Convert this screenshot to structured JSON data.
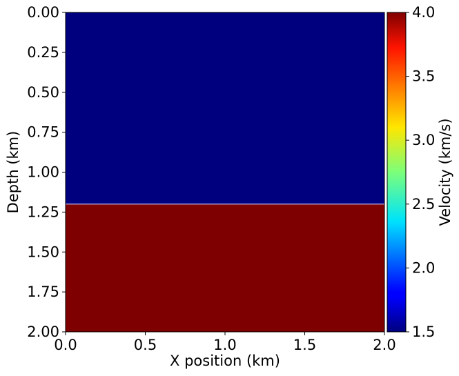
{
  "chart_data": {
    "type": "heatmap",
    "title": "",
    "xlabel": "X position (km)",
    "ylabel": "Depth (km)",
    "xlim": [
      0.0,
      2.0
    ],
    "ylim": [
      2.0,
      0.0
    ],
    "y_inverted": true,
    "x_ticks": [
      "0.0",
      "0.5",
      "1.0",
      "1.5",
      "2.0"
    ],
    "y_ticks": [
      "0.00",
      "0.25",
      "0.50",
      "0.75",
      "1.00",
      "1.25",
      "1.50",
      "1.75",
      "2.00"
    ],
    "layers": [
      {
        "depth_top": 0.0,
        "depth_bottom": 1.2,
        "velocity": 1.5,
        "color": "#00007f"
      },
      {
        "depth_top": 1.2,
        "depth_bottom": 2.0,
        "velocity": 4.0,
        "color": "#7f0000"
      }
    ],
    "colormap": "jet",
    "colorbar": {
      "label": "Velocity (km/s)",
      "range": [
        1.5,
        4.0
      ],
      "ticks": [
        "1.5",
        "2.0",
        "2.5",
        "3.0",
        "3.5",
        "4.0"
      ]
    }
  }
}
